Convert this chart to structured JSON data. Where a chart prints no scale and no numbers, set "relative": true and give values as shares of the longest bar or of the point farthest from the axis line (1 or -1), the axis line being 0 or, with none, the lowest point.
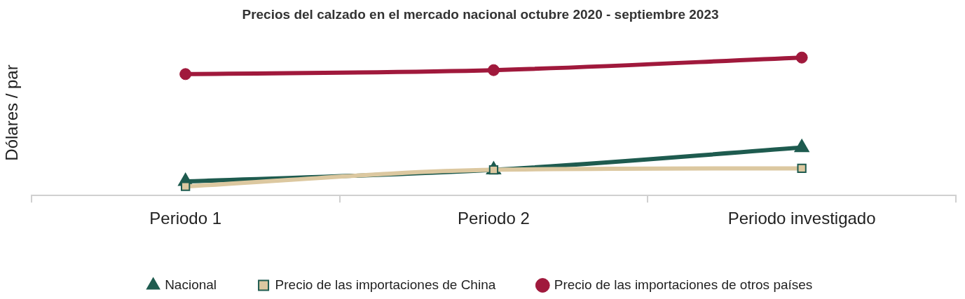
{
  "chart_data": {
    "type": "line",
    "title": "Precios del calzado en el mercado nacional octubre 2020 - septiembre 2023",
    "ylabel": "Dólares / par",
    "relative": true,
    "categories": [
      "Periodo 1",
      "Periodo 2",
      "Periodo investigado"
    ],
    "series": [
      {
        "name": "Nacional",
        "color": "#1e5b4f",
        "marker": "triangle",
        "values": [
          0.102,
          0.186,
          0.347
        ]
      },
      {
        "name": "Precio de las importaciones de China",
        "color": "#dcc8a0",
        "marker": "square",
        "values": [
          0.066,
          0.186,
          0.197
        ]
      },
      {
        "name": "Precio de las importaciones de otros países",
        "color": "#a0193c",
        "marker": "circle",
        "values": [
          0.88,
          0.909,
          1
        ]
      }
    ],
    "legend": "bottom",
    "grid": false
  }
}
